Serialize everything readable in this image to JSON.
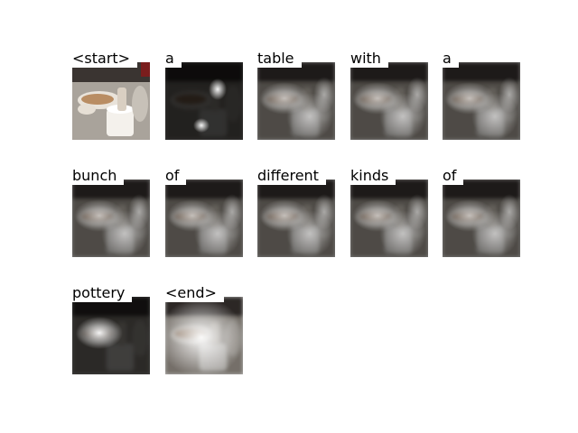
{
  "tokens": [
    {
      "word": "<start>",
      "shade": "photo"
    },
    {
      "word": "a",
      "shade": "dark-spot"
    },
    {
      "word": "table"
    },
    {
      "word": "with"
    },
    {
      "word": "a"
    },
    {
      "word": "bunch"
    },
    {
      "word": "of"
    },
    {
      "word": "different"
    },
    {
      "word": "kinds"
    },
    {
      "word": "of"
    },
    {
      "word": "pottery",
      "shade": "focus-plate"
    },
    {
      "word": "<end>",
      "shade": "bright-wash"
    }
  ]
}
